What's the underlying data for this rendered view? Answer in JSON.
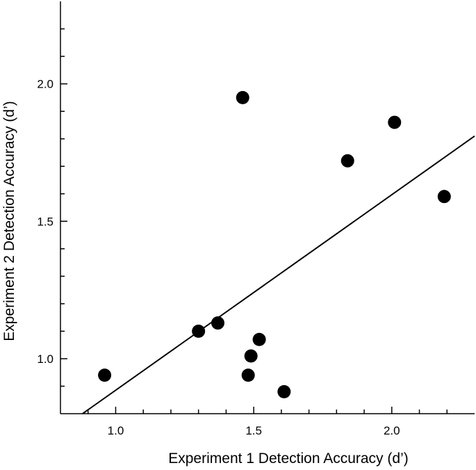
{
  "chart_data": {
    "type": "scatter",
    "title": "",
    "xlabel": "Experiment 1 Detection Accuracy (d’)",
    "ylabel": "Experiment 2 Detection Accuracy (d’)",
    "xlim": [
      0.8,
      2.3
    ],
    "ylim": [
      0.8,
      2.3
    ],
    "xticks": [
      1.0,
      1.5,
      2.0
    ],
    "xtick_labels": [
      "1.0",
      "1.5",
      "2.0"
    ],
    "yticks": [
      1.0,
      1.5,
      2.0
    ],
    "ytick_labels": [
      "1.0",
      "1.5",
      "2.0"
    ],
    "grid": false,
    "marker_color": "#000000",
    "points": [
      {
        "x": 0.96,
        "y": 0.94
      },
      {
        "x": 1.3,
        "y": 1.1
      },
      {
        "x": 1.37,
        "y": 1.13
      },
      {
        "x": 1.46,
        "y": 1.95
      },
      {
        "x": 1.48,
        "y": 0.94
      },
      {
        "x": 1.49,
        "y": 1.01
      },
      {
        "x": 1.52,
        "y": 1.07
      },
      {
        "x": 1.61,
        "y": 0.88
      },
      {
        "x": 1.84,
        "y": 1.72
      },
      {
        "x": 2.01,
        "y": 1.86
      },
      {
        "x": 2.19,
        "y": 1.59
      }
    ],
    "regression_line": {
      "x": [
        0.88,
        2.3
      ],
      "y": [
        0.8,
        1.81
      ]
    }
  }
}
